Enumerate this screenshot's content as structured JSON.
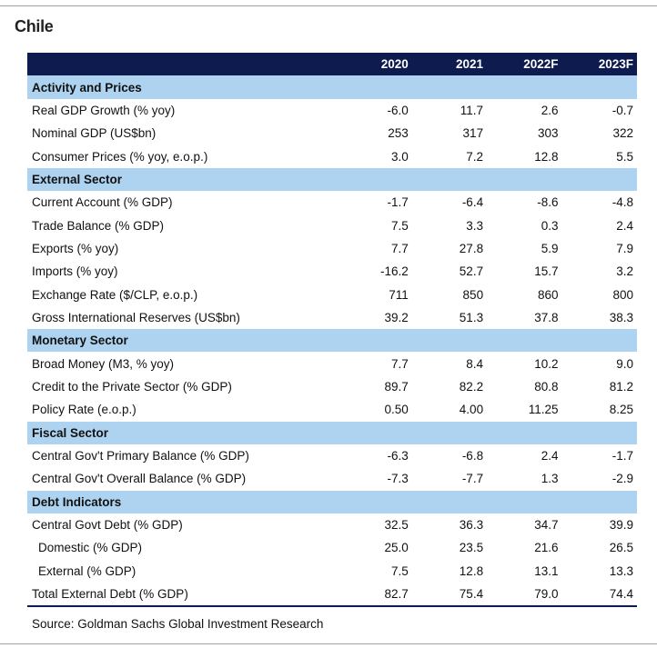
{
  "title": "Chile",
  "table": {
    "columns": [
      "2020",
      "2021",
      "2022F",
      "2023F"
    ],
    "sections": [
      {
        "name": "Activity and Prices",
        "rows": [
          {
            "label": "Real GDP Growth (% yoy)",
            "values": [
              "-6.0",
              "11.7",
              "2.6",
              "-0.7"
            ]
          },
          {
            "label": "Nominal GDP (US$bn)",
            "values": [
              "253",
              "317",
              "303",
              "322"
            ]
          },
          {
            "label": "Consumer Prices (% yoy, e.o.p.)",
            "values": [
              "3.0",
              "7.2",
              "12.8",
              "5.5"
            ]
          }
        ]
      },
      {
        "name": "External Sector",
        "rows": [
          {
            "label": "Current Account (% GDP)",
            "values": [
              "-1.7",
              "-6.4",
              "-8.6",
              "-4.8"
            ]
          },
          {
            "label": "Trade Balance (% GDP)",
            "values": [
              "7.5",
              "3.3",
              "0.3",
              "2.4"
            ]
          },
          {
            "label": "Exports (% yoy)",
            "values": [
              "7.7",
              "27.8",
              "5.9",
              "7.9"
            ]
          },
          {
            "label": "Imports (% yoy)",
            "values": [
              "-16.2",
              "52.7",
              "15.7",
              "3.2"
            ]
          },
          {
            "label": "Exchange Rate ($/CLP, e.o.p.)",
            "values": [
              "711",
              "850",
              "860",
              "800"
            ]
          },
          {
            "label": "Gross International Reserves (US$bn)",
            "values": [
              "39.2",
              "51.3",
              "37.8",
              "38.3"
            ]
          }
        ]
      },
      {
        "name": "Monetary Sector",
        "rows": [
          {
            "label": "Broad Money (M3, % yoy)",
            "values": [
              "7.7",
              "8.4",
              "10.2",
              "9.0"
            ]
          },
          {
            "label": "Credit to the Private Sector (% GDP)",
            "values": [
              "89.7",
              "82.2",
              "80.8",
              "81.2"
            ]
          },
          {
            "label": "Policy Rate (e.o.p.)",
            "values": [
              "0.50",
              "4.00",
              "11.25",
              "8.25"
            ]
          }
        ]
      },
      {
        "name": "Fiscal Sector",
        "rows": [
          {
            "label": "Central Gov't Primary Balance (% GDP)",
            "values": [
              "-6.3",
              "-6.8",
              "2.4",
              "-1.7"
            ]
          },
          {
            "label": "Central Gov't Overall Balance (% GDP)",
            "values": [
              "-7.3",
              "-7.7",
              "1.3",
              "-2.9"
            ]
          }
        ]
      },
      {
        "name": "Debt Indicators",
        "rows": [
          {
            "label": "Central Govt Debt (% GDP)",
            "values": [
              "32.5",
              "36.3",
              "34.7",
              "39.9"
            ],
            "subrows": [
              {
                "label": "Domestic (% GDP)",
                "values": [
                  "25.0",
                  "23.5",
                  "21.6",
                  "26.5"
                ]
              },
              {
                "label": "External (% GDP)",
                "values": [
                  "7.5",
                  "12.8",
                  "13.1",
                  "13.3"
                ]
              }
            ]
          },
          {
            "label": "Total External Debt (% GDP)",
            "values": [
              "82.7",
              "75.4",
              "79.0",
              "74.4"
            ]
          }
        ]
      }
    ]
  },
  "source": "Source: Goldman Sachs Global Investment Research"
}
